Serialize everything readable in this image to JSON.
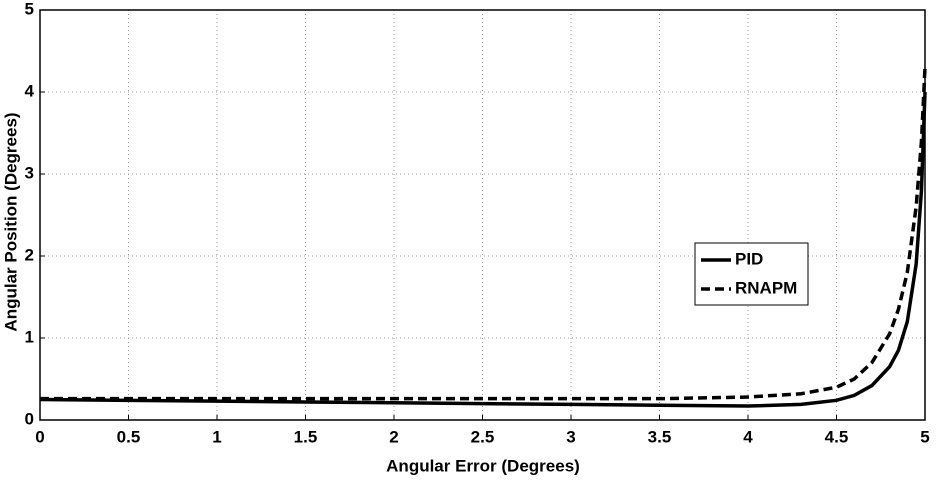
{
  "chart_data": {
    "type": "line",
    "xlabel": "Angular Error (Degrees)",
    "ylabel": "Angular Position (Degrees)",
    "x": [
      0,
      0.5,
      1,
      1.5,
      2,
      2.5,
      3,
      3.5,
      4,
      4.3,
      4.5,
      4.6,
      4.7,
      4.8,
      4.85,
      4.9,
      4.95,
      4.98,
      5
    ],
    "series": [
      {
        "name": "PID",
        "color": "#000000",
        "line_style": "solid",
        "values": [
          0.25,
          0.24,
          0.23,
          0.22,
          0.21,
          0.2,
          0.19,
          0.18,
          0.17,
          0.19,
          0.24,
          0.3,
          0.42,
          0.65,
          0.85,
          1.2,
          1.9,
          2.8,
          4.0
        ]
      },
      {
        "name": "RNAPM",
        "color": "#000000",
        "line_style": "dashed",
        "values": [
          0.26,
          0.26,
          0.26,
          0.26,
          0.26,
          0.26,
          0.26,
          0.26,
          0.28,
          0.32,
          0.4,
          0.5,
          0.7,
          1.05,
          1.35,
          1.8,
          2.6,
          3.4,
          4.3
        ]
      }
    ],
    "xlim": [
      0,
      5
    ],
    "xticks": [
      0,
      0.5,
      1,
      1.5,
      2,
      2.5,
      3,
      3.5,
      4,
      4.5,
      5
    ],
    "ylim": [
      0,
      5
    ],
    "yticks": [
      0,
      1,
      2,
      3,
      4,
      5
    ],
    "grid": true
  }
}
